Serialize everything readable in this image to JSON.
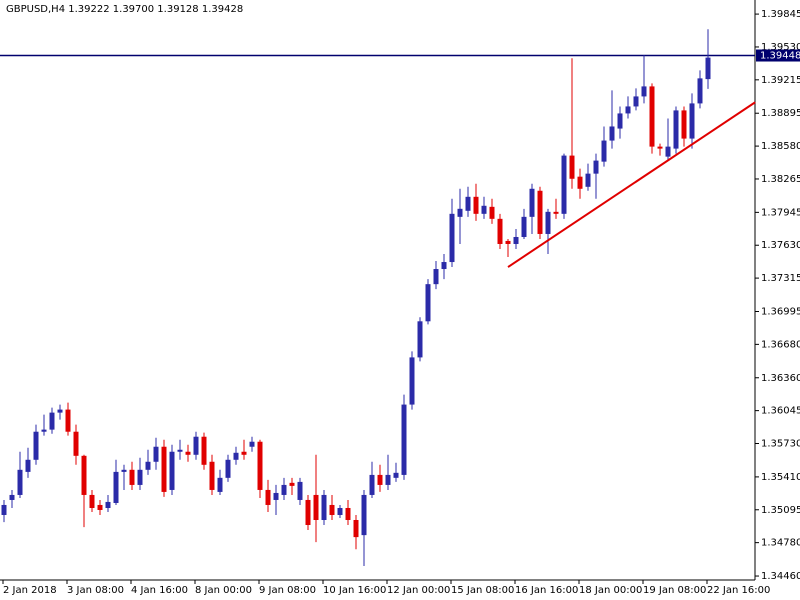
{
  "chart_data": {
    "type": "candlestick",
    "title": "GBPUSD,H4  1.39222 1.39700 1.39128 1.39428",
    "categories": [
      "2 Jan 2018",
      null,
      null,
      null,
      null,
      null,
      null,
      null,
      "3 Jan 08:00",
      null,
      null,
      null,
      null,
      null,
      null,
      null,
      "4 Jan 16:00",
      null,
      null,
      null,
      null,
      null,
      null,
      null,
      "8 Jan 00:00",
      null,
      null,
      null,
      null,
      null,
      null,
      null,
      "9 Jan 08:00",
      null,
      null,
      null,
      null,
      null,
      null,
      null,
      "10 Jan 16:00",
      null,
      null,
      null,
      null,
      null,
      null,
      null,
      "12 Jan 00:00",
      null,
      null,
      null,
      null,
      null,
      null,
      null,
      "15 Jan 08:00",
      null,
      null,
      null,
      null,
      null,
      null,
      null,
      "16 Jan 16:00",
      null,
      null,
      null,
      null,
      null,
      null,
      null,
      "18 Jan 00:00",
      null,
      null,
      null,
      null,
      null,
      null,
      null,
      "19 Jan 08:00",
      null,
      null,
      null,
      null,
      null,
      null,
      null,
      "22 Jan 16:00"
    ],
    "open": [
      1.35045,
      1.35189,
      1.35237,
      1.35458,
      1.35574,
      1.35843,
      1.35863,
      1.36026,
      1.36055,
      1.35843,
      1.35612,
      1.35237,
      1.35141,
      1.35112,
      1.3516,
      1.35458,
      1.35478,
      1.35333,
      1.35478,
      1.35555,
      1.35699,
      1.35285,
      1.35651,
      1.35651,
      1.35622,
      1.35795,
      1.35555,
      1.35266,
      1.35401,
      1.35574,
      1.35651,
      1.35699,
      1.35747,
      1.35285,
      1.35189,
      1.35237,
      1.35353,
      1.35189,
      1.35189,
      1.35237,
      1.34997,
      1.35141,
      1.35045,
      1.35112,
      1.34997,
      1.34852,
      1.35237,
      1.35429,
      1.35333,
      1.35401,
      1.35429,
      1.36103,
      1.36555,
      1.36901,
      1.37257,
      1.37402,
      1.37469,
      1.37902,
      1.3796,
      1.38094,
      1.37931,
      1.37998,
      1.37883,
      1.37671,
      1.37642,
      1.37709,
      1.37902,
      1.38152,
      1.37738,
      1.3795,
      1.37931,
      1.38489,
      1.38287,
      1.3819,
      1.38316,
      1.38431,
      1.38633,
      1.38748,
      1.38893,
      1.3896,
      1.39056,
      1.39152,
      1.38575,
      1.38479,
      1.38556,
      1.38922,
      1.38652,
      1.38989,
      1.39222
    ],
    "high": [
      1.35189,
      1.35285,
      1.35651,
      1.35689,
      1.35911,
      1.36007,
      1.36074,
      1.36103,
      1.36122,
      1.35911,
      1.35622,
      1.35285,
      1.35189,
      1.35237,
      1.35574,
      1.35526,
      1.35555,
      1.35593,
      1.3567,
      1.35785,
      1.35766,
      1.35718,
      1.35766,
      1.35718,
      1.35843,
      1.35834,
      1.35622,
      1.35478,
      1.35622,
      1.35699,
      1.35766,
      1.35795,
      1.35766,
      1.35381,
      1.35333,
      1.35401,
      1.35401,
      1.35401,
      1.35237,
      1.35622,
      1.35285,
      1.35237,
      1.35141,
      1.35189,
      1.35045,
      1.35285,
      1.35555,
      1.35526,
      1.35622,
      1.35545,
      1.36199,
      1.36613,
      1.3694,
      1.37305,
      1.37479,
      1.37546,
      1.38075,
      1.38171,
      1.3819,
      1.38219,
      1.38094,
      1.38075,
      1.37931,
      1.3769,
      1.37786,
      1.37979,
      1.38219,
      1.3819,
      1.37979,
      1.38075,
      1.38508,
      1.39422,
      1.38364,
      1.38412,
      1.38508,
      1.38768,
      1.39114,
      1.3896,
      1.39056,
      1.39133,
      1.39451,
      1.39181,
      1.38604,
      1.38845,
      1.3896,
      1.3896,
      1.39085,
      1.39306,
      1.397
    ],
    "low": [
      1.34977,
      1.35112,
      1.35208,
      1.35401,
      1.35526,
      1.35805,
      1.35824,
      1.35959,
      1.35805,
      1.35526,
      1.34929,
      1.35074,
      1.35045,
      1.35074,
      1.35141,
      1.35285,
      1.35285,
      1.35285,
      1.35429,
      1.35478,
      1.35218,
      1.35237,
      1.35574,
      1.35555,
      1.35574,
      1.35478,
      1.35237,
      1.35237,
      1.35362,
      1.35526,
      1.35574,
      1.35651,
      1.35208,
      1.35074,
      1.35045,
      1.35189,
      1.35237,
      1.35141,
      1.34901,
      1.34785,
      1.34949,
      1.34997,
      1.35016,
      1.34949,
      1.34717,
      1.34556,
      1.35208,
      1.35266,
      1.35285,
      1.35362,
      1.35381,
      1.36055,
      1.36517,
      1.36872,
      1.37209,
      1.37305,
      1.37421,
      1.37642,
      1.37902,
      1.37863,
      1.37883,
      1.37835,
      1.37594,
      1.37517,
      1.37594,
      1.3769,
      1.37738,
      1.3769,
      1.37546,
      1.37883,
      1.37883,
      1.38171,
      1.38075,
      1.38152,
      1.38075,
      1.38383,
      1.38556,
      1.38652,
      1.38845,
      1.38922,
      1.38989,
      1.38508,
      1.38489,
      1.38441,
      1.38508,
      1.38575,
      1.38556,
      1.38941,
      1.39128
    ],
    "close": [
      1.35141,
      1.35237,
      1.35478,
      1.35574,
      1.35843,
      1.35863,
      1.36026,
      1.36055,
      1.35843,
      1.35612,
      1.35237,
      1.35112,
      1.35093,
      1.3517,
      1.35458,
      1.35478,
      1.35333,
      1.35478,
      1.35555,
      1.35699,
      1.35266,
      1.35651,
      1.3567,
      1.35622,
      1.35795,
      1.35526,
      1.35285,
      1.35401,
      1.35574,
      1.35641,
      1.35622,
      1.35747,
      1.35285,
      1.35141,
      1.35256,
      1.35333,
      1.35324,
      1.35362,
      1.34949,
      1.34997,
      1.35237,
      1.35045,
      1.35112,
      1.34997,
      1.34833,
      1.35237,
      1.35429,
      1.35333,
      1.35429,
      1.35449,
      1.36103,
      1.36555,
      1.36901,
      1.37257,
      1.37402,
      1.37469,
      1.37931,
      1.37979,
      1.38094,
      1.37931,
      1.38008,
      1.37883,
      1.37642,
      1.37642,
      1.37709,
      1.37902,
      1.38171,
      1.37738,
      1.3795,
      1.37931,
      1.38489,
      1.38267,
      1.38171,
      1.38316,
      1.38441,
      1.38633,
      1.38768,
      1.38893,
      1.3896,
      1.39056,
      1.39152,
      1.38575,
      1.38556,
      1.38575,
      1.38922,
      1.38652,
      1.38989,
      1.39229,
      1.39428
    ],
    "up_color": "#2b2ba8",
    "down_color": "#e00000",
    "ylim": [
      1.34422,
      1.3998
    ],
    "yticks": [
      1.39845,
      {
        "value": 1.3953,
        "label": "1.39530"
      },
      1.39215,
      1.38895,
      {
        "value": 1.3858,
        "label": "1.38580"
      },
      1.38265,
      1.37945,
      {
        "value": 1.3763,
        "label": "1.37630"
      },
      1.37315,
      1.36995,
      {
        "value": 1.3668,
        "label": "1.36680"
      },
      {
        "value": 1.3636,
        "label": "1.36360"
      },
      1.36045,
      {
        "value": 1.3573,
        "label": "1.35730"
      },
      {
        "value": 1.3541,
        "label": "1.35410"
      },
      1.35095,
      {
        "value": 1.3478,
        "label": "1.34780"
      },
      {
        "value": 1.3446,
        "label": "1.34460"
      }
    ],
    "hline": {
      "value": 1.39448,
      "color": "#00006e"
    },
    "trendline": {
      "x": [
        63,
        93.9
      ],
      "y": [
        1.37421,
        1.39
      ],
      "color": "#e00000"
    },
    "grid": false
  }
}
